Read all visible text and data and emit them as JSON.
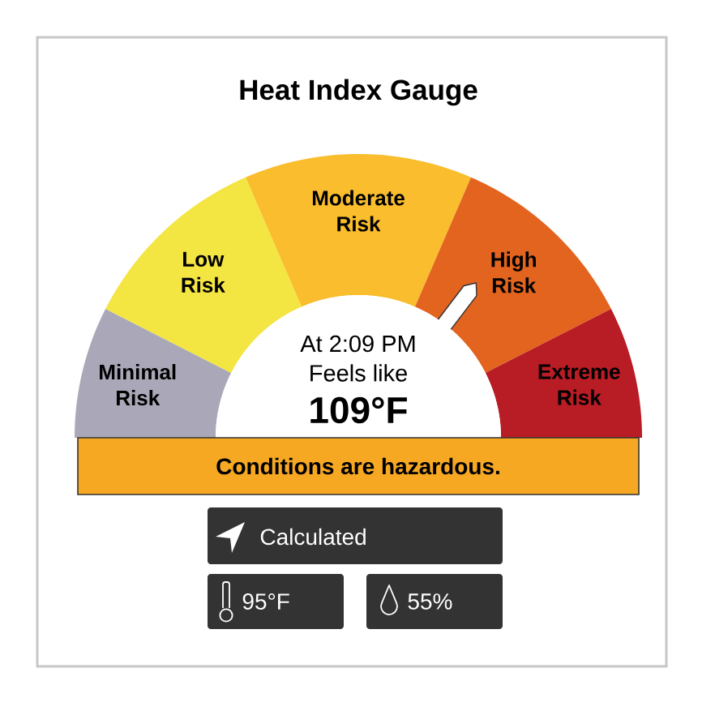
{
  "chart_data": {
    "type": "donut",
    "title": "Heat Index Gauge",
    "categories": [
      "Minimal Risk",
      "Low Risk",
      "Moderate Risk",
      "High Risk",
      "Extreme Risk"
    ],
    "values": [
      15,
      22,
      26,
      22,
      15
    ],
    "colors": [
      "#aaa8b8",
      "#f3e542",
      "#f9bd2d",
      "#e2641f",
      "#b81c24"
    ],
    "needle": "High Risk",
    "annotations": [
      "At 2:09 PM",
      "Feels like",
      "109°F",
      "Conditions are hazardous.",
      "Calculated",
      "95°F",
      "55%"
    ]
  }
}
